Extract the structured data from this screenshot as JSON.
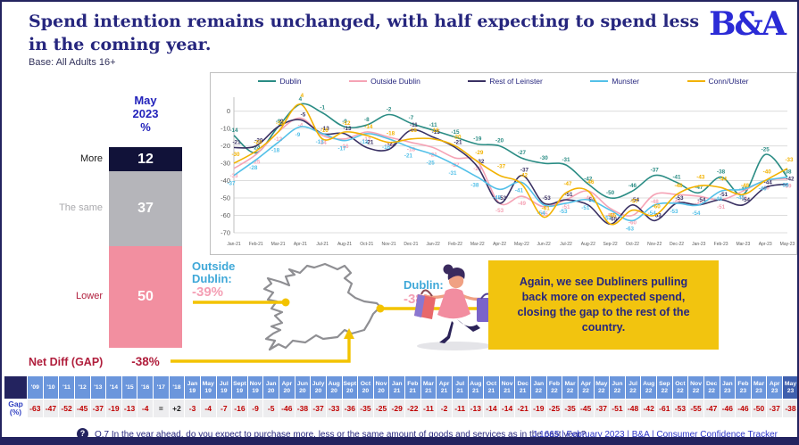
{
  "header": {
    "title": "Spend intention remains unchanged, with half expecting to spend less in the coming year.",
    "base": "Base: All Adults 16+",
    "logo": "B&A"
  },
  "bar_panel": {
    "period_label": "May\n2023\n%",
    "rows": [
      {
        "label": "More",
        "value": 12,
        "color": "#111239",
        "label_color": "#1a1a1a"
      },
      {
        "label": "The same",
        "value": 37,
        "color": "#b5b5ba",
        "label_color": "#a9a9ad"
      },
      {
        "label": "Lower",
        "value": 50,
        "color": "#f28fa0",
        "label_color": "#b01e3c"
      }
    ],
    "net_diff_label": "Net Diff (GAP)",
    "net_diff_value": "-38%"
  },
  "chart_data": {
    "type": "line",
    "title": "",
    "xlabel": "",
    "ylabel": "",
    "ylim": [
      -70,
      8
    ],
    "yticks": [
      0,
      -10,
      -20,
      -30,
      -40,
      -50,
      -60,
      -70
    ],
    "grid": true,
    "legend_position": "top",
    "x": [
      "Jan-21",
      "Feb-21",
      "Mar-21",
      "Apr-21",
      "Jul-21",
      "Aug-21",
      "Oct-21",
      "Nov-21",
      "Dec-21",
      "Jan-22",
      "Feb-22",
      "Mar-22",
      "Apr-22",
      "May-22",
      "Jun-22",
      "Jul-22",
      "Aug-22",
      "Sep-22",
      "Oct-22",
      "Nov-22",
      "Dec-22",
      "Jan-23",
      "Feb-23",
      "Mar-23",
      "Apr-23",
      "May-23"
    ],
    "series": [
      {
        "name": "Dublin",
        "color": "#2a8c84",
        "values": [
          -14,
          -24,
          -9,
          4,
          -1,
          -9,
          -8,
          -2,
          -7,
          -11,
          -15,
          -19,
          -20,
          -27,
          -30,
          -31,
          -42,
          -50,
          -46,
          -37,
          -41,
          -47,
          -38,
          -48,
          -25,
          -38
        ]
      },
      {
        "name": "Outside Dublin",
        "color": "#f5a3b5",
        "values": [
          -33,
          -25,
          -12,
          -4,
          -14,
          -16,
          -12,
          -15,
          -18,
          -21,
          -27,
          -29,
          -53,
          -49,
          -55,
          -51,
          -46,
          -56,
          -60,
          -48,
          -48,
          -49,
          -51,
          -46,
          -40,
          -39
        ]
      },
      {
        "name": "Rest of Leinster",
        "color": "#3a3163",
        "values": [
          -21,
          -20,
          -9,
          -5,
          -13,
          -13,
          -21,
          -22,
          -11,
          -15,
          -21,
          -32,
          -53,
          -37,
          -53,
          -51,
          -54,
          -65,
          -54,
          -63,
          -53,
          -54,
          -51,
          -54,
          -44,
          -42
        ]
      },
      {
        "name": "Munster",
        "color": "#53c0e8",
        "values": [
          -37,
          -28,
          -18,
          -9,
          -13,
          -17,
          -13,
          -16,
          -21,
          -25,
          -31,
          -38,
          -45,
          -41,
          -54,
          -53,
          -51,
          -57,
          -63,
          -54,
          -53,
          -54,
          -46,
          -45,
          -40,
          -38
        ]
      },
      {
        "name": "Conn/Ulster",
        "color": "#f2b200",
        "values": [
          -30,
          -23,
          -12,
          4,
          -16,
          -12,
          -14,
          -18,
          -16,
          -16,
          -20,
          -29,
          -37,
          -42,
          -61,
          -47,
          -46,
          -65,
          -57,
          -60,
          -48,
          -43,
          -44,
          -48,
          -40,
          -33
        ]
      }
    ]
  },
  "map_annotations": {
    "outside_dublin_label": "Outside\nDublin:",
    "outside_dublin_value": "-39%",
    "dublin_label": "Dublin:",
    "dublin_value": "-38%",
    "accent_color": "#f3c300"
  },
  "callout": {
    "text": "Again, we see Dubliners pulling back more on expected spend, closing the gap to the rest of the country."
  },
  "gap_table": {
    "row_label": "Gap\n(%)",
    "columns": [
      "'09",
      "'10",
      "'11",
      "'12",
      "'13",
      "'14",
      "'15",
      "'16",
      "'17",
      "'18",
      "Jan\n19",
      "May\n19",
      "Jul\n19",
      "Sept\n19",
      "Nov\n19",
      "Jan\n20",
      "Apr\n20",
      "Jun\n20",
      "July\n20",
      "Aug\n20",
      "Sept\n20",
      "Oct\n20",
      "Nov\n20",
      "Jan\n21",
      "Feb\n21",
      "Mar\n21",
      "Apr\n21",
      "Jul\n21",
      "Aug\n21",
      "Oct\n21",
      "Nov\n21",
      "Dec\n21",
      "Jan\n22",
      "Feb\n22",
      "Mar\n22",
      "Apr\n22",
      "May\n22",
      "Jun\n22",
      "Jul\n22",
      "Aug\n22",
      "Sep\n22",
      "Oct\n22",
      "Nov\n22",
      "Dec\n22",
      "Jan\n23",
      "Feb\n23",
      "Mar\n23",
      "Apr\n23",
      "May\n23"
    ],
    "values": [
      "-63",
      "-47",
      "-52",
      "-45",
      "-37",
      "-19",
      "-13",
      "-4",
      "=",
      "+2",
      "-3",
      "-4",
      "-7",
      "-16",
      "-9",
      "-5",
      "-46",
      "-38",
      "-37",
      "-33",
      "-36",
      "-35",
      "-25",
      "-29",
      "-22",
      "-11",
      "-2",
      "-11",
      "-13",
      "-14",
      "-14",
      "-21",
      "-19",
      "-25",
      "-35",
      "-45",
      "-37",
      "-51",
      "-48",
      "-42",
      "-61",
      "-53",
      "-55",
      "-47",
      "-46",
      "-46",
      "-50",
      "-37",
      "-38"
    ]
  },
  "footer": {
    "help_icon": "?",
    "question": "Q.7 In the year ahead, do you expect to purchase more, less or the same amount of goods and services as in the past year?",
    "source": "J.1665 | February 2023 | B&A | Consumer Confidence Tracker"
  }
}
